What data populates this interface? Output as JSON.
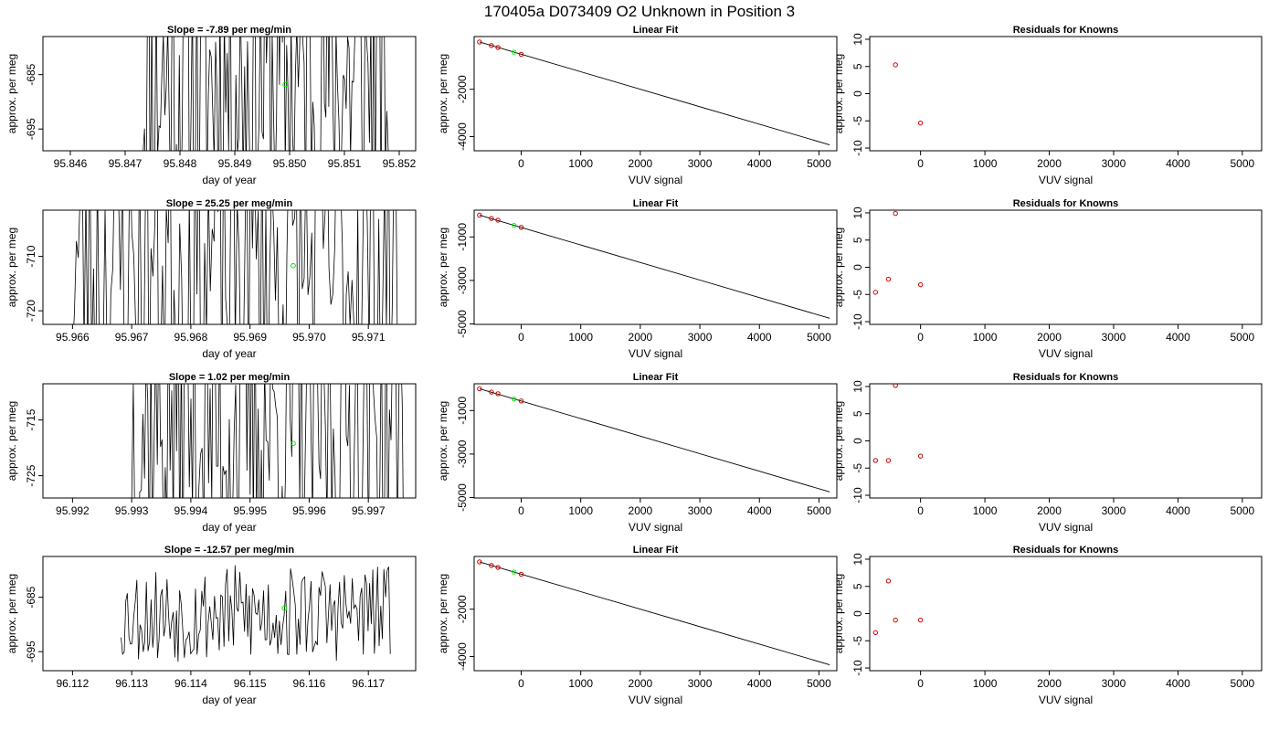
{
  "page": {
    "title": "170405a      D073409   O2 Unknown in Position  3"
  },
  "colors": {
    "unknown": "#00ee00",
    "known_residual": "#cc0000",
    "line": "#000000",
    "axis": "#000000"
  },
  "chart_data": [
    {
      "type": "line",
      "panel": "time-1",
      "title": "Slope =  -7.89  per meg/min",
      "xlabel": "day of year",
      "ylabel": "approx. per meg",
      "xlim": [
        95.8455,
        95.8523
      ],
      "ylim": [
        -699.0,
        -678.0
      ],
      "xticks": [
        "95.846",
        "95.847",
        "95.848",
        "95.849",
        "95.850",
        "95.851",
        "95.852"
      ],
      "yticks": [
        "-685",
        "-695"
      ],
      "trace_start": 95.8473,
      "trace_end": 95.8518,
      "trace_mean": -686.0,
      "trace_amp": 30.0,
      "trace_seed": 11,
      "unknown_point": {
        "x": 95.84992,
        "y": -686.8
      }
    },
    {
      "type": "line",
      "panel": "fit-1",
      "title": "Linear Fit",
      "xlabel": "VUV signal",
      "ylabel": "approx. per meg",
      "xlim": [
        -790,
        5300
      ],
      "ylim": [
        -4600,
        230
      ],
      "xticks": [
        "0",
        "1000",
        "2000",
        "3000",
        "4000",
        "5000"
      ],
      "yticks": [
        "-2000",
        "-4000"
      ],
      "fit_line": {
        "x1": -700,
        "y1": 0,
        "x2": 5180,
        "y2": -4350
      },
      "known_points": [
        {
          "x": -700,
          "y": 0
        },
        {
          "x": -500,
          "y": -150
        },
        {
          "x": -390,
          "y": -230
        },
        {
          "x": 0,
          "y": -520
        }
      ],
      "unknown_point": {
        "x": -120,
        "y": -430
      }
    },
    {
      "type": "scatter",
      "panel": "resid-1",
      "title": "Residuals for Knowns",
      "xlabel": "VUV signal",
      "ylabel": "approx. per meg",
      "xlim": [
        -790,
        5300
      ],
      "ylim": [
        -10.5,
        10.5
      ],
      "xticks": [
        "0",
        "1000",
        "2000",
        "3000",
        "4000",
        "5000"
      ],
      "yticks": [
        "10",
        "5",
        "0",
        "-5",
        "-10"
      ],
      "points": [
        {
          "x": -390,
          "y": 5.3
        },
        {
          "x": 0,
          "y": -5.4
        }
      ]
    },
    {
      "type": "line",
      "panel": "time-2",
      "title": "Slope =  25.25  per meg/min",
      "xlabel": "day of year",
      "ylabel": "approx. per meg",
      "xlim": [
        95.9655,
        95.9718
      ],
      "ylim": [
        -722.5,
        -701.5
      ],
      "xticks": [
        "95.966",
        "95.967",
        "95.968",
        "95.969",
        "95.970",
        "95.971"
      ],
      "yticks": [
        "-710",
        "-720"
      ],
      "trace_start": 95.966,
      "trace_end": 95.9715,
      "trace_mean": -711.5,
      "trace_amp": 32.0,
      "trace_seed": 23,
      "unknown_point": {
        "x": 95.96973,
        "y": -711.7
      }
    },
    {
      "type": "line",
      "panel": "fit-2",
      "title": "Linear Fit",
      "xlabel": "VUV signal",
      "ylabel": "approx. per meg",
      "xlim": [
        -790,
        5300
      ],
      "ylim": [
        -5020,
        230
      ],
      "xticks": [
        "0",
        "1000",
        "2000",
        "3000",
        "4000",
        "5000"
      ],
      "yticks": [
        "-1000",
        "-3000",
        "-5000"
      ],
      "fit_line": {
        "x1": -700,
        "y1": 0,
        "x2": 5180,
        "y2": -4740
      },
      "known_points": [
        {
          "x": -700,
          "y": 0
        },
        {
          "x": -500,
          "y": -150
        },
        {
          "x": -390,
          "y": -230
        },
        {
          "x": 0,
          "y": -560
        }
      ],
      "unknown_point": {
        "x": -120,
        "y": -470
      }
    },
    {
      "type": "scatter",
      "panel": "resid-2",
      "title": "Residuals for Knowns",
      "xlabel": "VUV signal",
      "ylabel": "approx. per meg",
      "xlim": [
        -790,
        5300
      ],
      "ylim": [
        -10.5,
        10.5
      ],
      "xticks": [
        "0",
        "1000",
        "2000",
        "3000",
        "4000",
        "5000"
      ],
      "yticks": [
        "10",
        "5",
        "0",
        "-5",
        "-10"
      ],
      "points": [
        {
          "x": -700,
          "y": -4.6
        },
        {
          "x": -500,
          "y": -2.2
        },
        {
          "x": -390,
          "y": 9.9
        },
        {
          "x": 0,
          "y": -3.2
        }
      ]
    },
    {
      "type": "line",
      "panel": "time-3",
      "title": "Slope =  1.02  per meg/min",
      "xlabel": "day of year",
      "ylabel": "approx. per meg",
      "xlim": [
        95.9915,
        95.9978
      ],
      "ylim": [
        -729.0,
        -708.5
      ],
      "xticks": [
        "95.992",
        "95.993",
        "95.994",
        "95.995",
        "95.996",
        "95.997"
      ],
      "yticks": [
        "-715",
        "-725"
      ],
      "trace_start": 95.993,
      "trace_end": 95.9976,
      "trace_mean": -716.0,
      "trace_amp": 28.0,
      "trace_seed": 37,
      "unknown_point": {
        "x": 95.99573,
        "y": -719.2
      }
    },
    {
      "type": "line",
      "panel": "fit-3",
      "title": "Linear Fit",
      "xlabel": "VUV signal",
      "ylabel": "approx. per meg",
      "xlim": [
        -790,
        5300
      ],
      "ylim": [
        -5020,
        230
      ],
      "xticks": [
        "0",
        "1000",
        "2000",
        "3000",
        "4000",
        "5000"
      ],
      "yticks": [
        "-1000",
        "-3000",
        "-5000"
      ],
      "fit_line": {
        "x1": -700,
        "y1": 0,
        "x2": 5180,
        "y2": -4740
      },
      "known_points": [
        {
          "x": -700,
          "y": 0
        },
        {
          "x": -500,
          "y": -150
        },
        {
          "x": -390,
          "y": -230
        },
        {
          "x": 0,
          "y": -560
        }
      ],
      "unknown_point": {
        "x": -120,
        "y": -470
      }
    },
    {
      "type": "scatter",
      "panel": "resid-3",
      "title": "Residuals for Knowns",
      "xlabel": "VUV signal",
      "ylabel": "approx. per meg",
      "xlim": [
        -790,
        5300
      ],
      "ylim": [
        -10.5,
        10.5
      ],
      "xticks": [
        "0",
        "1000",
        "2000",
        "3000",
        "4000",
        "5000"
      ],
      "yticks": [
        "10",
        "5",
        "0",
        "-5",
        "-10"
      ],
      "points": [
        {
          "x": -700,
          "y": -3.6
        },
        {
          "x": -500,
          "y": -3.6
        },
        {
          "x": -390,
          "y": 10.2
        },
        {
          "x": 0,
          "y": -2.8
        }
      ]
    },
    {
      "type": "line",
      "panel": "time-4",
      "title": "Slope =  -12.57  per meg/min",
      "xlabel": "day of year",
      "ylabel": "approx. per meg",
      "xlim": [
        96.1115,
        96.1178
      ],
      "ylim": [
        -698.5,
        -677.5
      ],
      "xticks": [
        "96.112",
        "96.113",
        "96.114",
        "96.115",
        "96.116",
        "96.117"
      ],
      "yticks": [
        "-685",
        "-695"
      ],
      "trace_start": 96.11282,
      "trace_end": 96.11737,
      "trace_mean": -688.0,
      "trace_amp": 9.0,
      "trace_seed": 53,
      "unknown_point": {
        "x": 96.11558,
        "y": -687.0
      }
    },
    {
      "type": "line",
      "panel": "fit-4",
      "title": "Linear Fit",
      "xlabel": "VUV signal",
      "ylabel": "approx. per meg",
      "xlim": [
        -790,
        5300
      ],
      "ylim": [
        -4600,
        230
      ],
      "xticks": [
        "0",
        "1000",
        "2000",
        "3000",
        "4000",
        "5000"
      ],
      "yticks": [
        "-2000",
        "-4000"
      ],
      "fit_line": {
        "x1": -700,
        "y1": 0,
        "x2": 5180,
        "y2": -4350
      },
      "known_points": [
        {
          "x": -700,
          "y": 0
        },
        {
          "x": -500,
          "y": -150
        },
        {
          "x": -390,
          "y": -230
        },
        {
          "x": 0,
          "y": -520
        }
      ],
      "unknown_point": {
        "x": -120,
        "y": -430
      }
    },
    {
      "type": "scatter",
      "panel": "resid-4",
      "title": "Residuals for Knowns",
      "xlabel": "VUV signal",
      "ylabel": "approx. per meg",
      "xlim": [
        -790,
        5300
      ],
      "ylim": [
        -10.5,
        10.5
      ],
      "xticks": [
        "0",
        "1000",
        "2000",
        "3000",
        "4000",
        "5000"
      ],
      "yticks": [
        "10",
        "5",
        "0",
        "-5",
        "-10"
      ],
      "points": [
        {
          "x": -700,
          "y": -3.5
        },
        {
          "x": -500,
          "y": 6.0
        },
        {
          "x": -390,
          "y": -1.2
        },
        {
          "x": 0,
          "y": -1.2
        }
      ]
    }
  ]
}
